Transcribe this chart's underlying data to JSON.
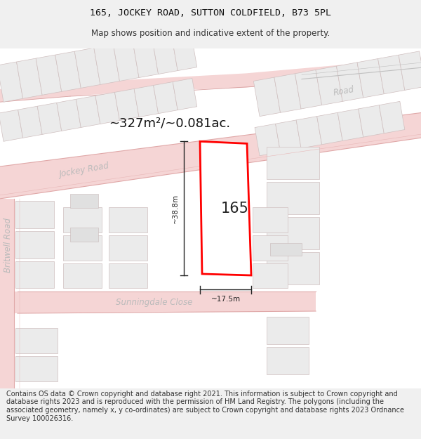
{
  "title": "165, JOCKEY ROAD, SUTTON COLDFIELD, B73 5PL",
  "subtitle": "Map shows position and indicative extent of the property.",
  "footer": "Contains OS data © Crown copyright and database right 2021. This information is subject to Crown copyright and database rights 2023 and is reproduced with the permission of HM Land Registry. The polygons (including the associated geometry, namely x, y co-ordinates) are subject to Crown copyright and database rights 2023 Ordnance Survey 100026316.",
  "title_fontsize": 9.5,
  "subtitle_fontsize": 8.5,
  "footer_fontsize": 7.0,
  "bg_color": "#f0f0f0",
  "map_bg": "#ffffff",
  "road_fill": "#f5d5d5",
  "road_stroke": "#e8a8a8",
  "road_line": "#e8a8a8",
  "building_fill": "#e8e8e8",
  "building_stroke": "#d0c0c0",
  "highlight_fill": "#ffffff",
  "highlight_stroke": "#ff0000",
  "dim_color": "#222222",
  "area_text": "~327m²/~0.081ac.",
  "area_fontsize": 13,
  "label_165": "165",
  "label_fontsize": 15,
  "dim_38": "~38.8m",
  "dim_17": "~17.5m",
  "road_label_jockey": "Jockey Road",
  "road_label_britwell": "Britwell Road",
  "road_label_sunningdale": "Sunningdale Close",
  "road_label_road": "Road",
  "road_label_fontsize": 8.5,
  "road_label_color": "#bbbbbb"
}
